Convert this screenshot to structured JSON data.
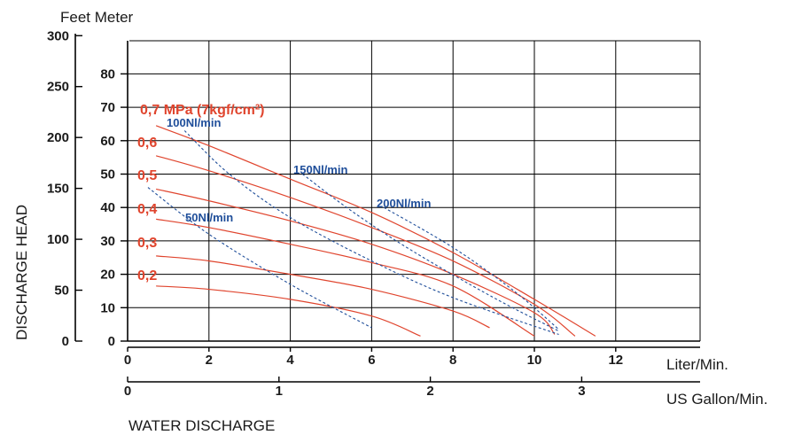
{
  "chart_data": {
    "type": "line",
    "xlabel": "WATER DISCHARGE",
    "x_unit_primary": "Liter/Min.",
    "x_unit_secondary": "US Gallon/Min.",
    "ylabel": "DISCHARGE HEAD",
    "y_unit_left": "Feet",
    "y_unit_right": "Meter",
    "xlim": [
      0,
      14
    ],
    "ylim": [
      0,
      90
    ],
    "x_ticks": [
      "0",
      "2",
      "4",
      "6",
      "8",
      "10",
      "12"
    ],
    "x_gal_ticks": [
      "0",
      "1",
      "2",
      "3"
    ],
    "y_meter_ticks": [
      "0",
      "10",
      "20",
      "30",
      "40",
      "50",
      "60",
      "70",
      "80"
    ],
    "y_feet_ticks": [
      "0",
      "50",
      "100",
      "150",
      "200",
      "250",
      "300"
    ],
    "grid": true,
    "colors": {
      "pressure": "#e0452e",
      "air": "#1f4e9a",
      "grid": "#000000"
    },
    "series": [
      {
        "name": "0,7 MPa (7kgf/cm²)",
        "kind": "pressure",
        "x": [
          0.7,
          2,
          4,
          6,
          8,
          10,
          11.5
        ],
        "y": [
          64.5,
          58.5,
          48.5,
          38.5,
          26.5,
          12.5,
          1.5
        ]
      },
      {
        "name": "0,6",
        "kind": "pressure",
        "x": [
          0.7,
          2,
          4,
          6,
          8,
          10,
          11
        ],
        "y": [
          55.5,
          51,
          43,
          34,
          24,
          11,
          1.5
        ]
      },
      {
        "name": "0,5",
        "kind": "pressure",
        "x": [
          0.7,
          2,
          4,
          6,
          8,
          10,
          10.5
        ],
        "y": [
          45.5,
          42,
          36,
          29,
          20,
          8.5,
          2
        ]
      },
      {
        "name": "0,4",
        "kind": "pressure",
        "x": [
          0.7,
          2,
          4,
          6,
          8,
          10
        ],
        "y": [
          36.5,
          34,
          29,
          23.5,
          16.5,
          1.5
        ]
      },
      {
        "name": "0,3",
        "kind": "pressure",
        "x": [
          0.7,
          2,
          4,
          6,
          8,
          8.9
        ],
        "y": [
          25.5,
          24,
          20,
          15.5,
          9,
          4
        ]
      },
      {
        "name": "0,2",
        "kind": "pressure",
        "x": [
          0.7,
          2,
          4,
          6,
          7.2
        ],
        "y": [
          16.5,
          15.5,
          12.5,
          7.5,
          1.5
        ]
      },
      {
        "name": "100Nl/min",
        "kind": "air",
        "x": [
          1.4,
          2.5,
          4,
          6,
          8,
          10.6
        ],
        "y": [
          63,
          50,
          37,
          24,
          13,
          2
        ]
      },
      {
        "name": "150Nl/min",
        "kind": "air",
        "x": [
          4.3,
          5.5,
          7,
          9,
          10.6
        ],
        "y": [
          50,
          39,
          27,
          13,
          3
        ]
      },
      {
        "name": "200Nl/min",
        "kind": "air",
        "x": [
          6.3,
          8,
          9.5,
          10.6
        ],
        "y": [
          40,
          28,
          15,
          3.5
        ]
      },
      {
        "name": "50Nl/min",
        "kind": "air",
        "x": [
          0.5,
          2,
          4,
          6
        ],
        "y": [
          46,
          32,
          17,
          4
        ]
      }
    ]
  },
  "labels": {
    "feet_meter": "Feet  Meter",
    "p07": "0,7 MPa (7kgf/cm²)",
    "p06": "0,6",
    "p05": "0,5",
    "p04": "0,4",
    "p03": "0,3",
    "p02": "0,2",
    "a100": "100Nl/min",
    "a150": "150Nl/min",
    "a200": "200Nl/min",
    "a50": "50Nl/min",
    "x_unit_primary": "Liter/Min.",
    "x_unit_secondary": "US Gallon/Min.",
    "xlabel": "WATER DISCHARGE",
    "ylabel": "DISCHARGE HEAD"
  }
}
